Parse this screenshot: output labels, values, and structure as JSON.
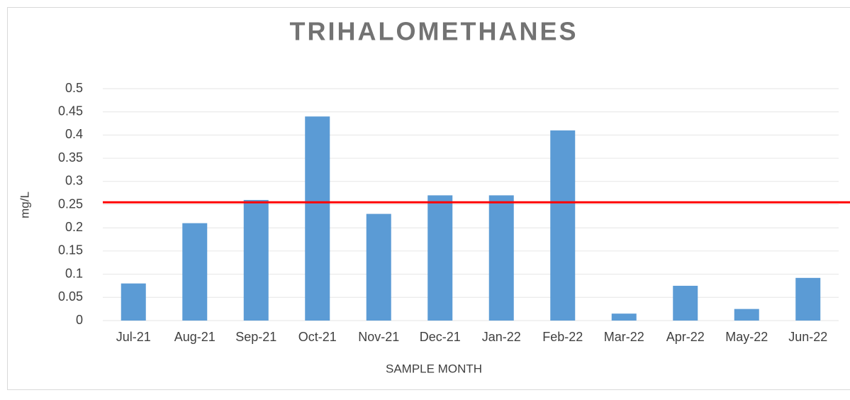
{
  "chart_data": {
    "type": "bar",
    "title": "TRIHALOMETHANES",
    "x_label": "SAMPLE MONTH",
    "y_label": "mg/L",
    "categories": [
      "Jul-21",
      "Aug-21",
      "Sep-21",
      "Oct-21",
      "Nov-21",
      "Dec-21",
      "Jan-22",
      "Feb-22",
      "Mar-22",
      "Apr-22",
      "May-22",
      "Jun-22"
    ],
    "values": [
      0.08,
      0.21,
      0.26,
      0.44,
      0.23,
      0.27,
      0.27,
      0.41,
      0.015,
      0.075,
      0.025,
      0.092
    ],
    "color": "#5b9bd5",
    "threshold": 0.255,
    "threshold_color": "#ff0000",
    "ylim": [
      0,
      0.5
    ],
    "yticks": [
      0,
      0.05,
      0.1,
      0.15,
      0.2,
      0.25,
      0.3,
      0.35,
      0.4,
      0.45,
      0.5
    ],
    "grid": true
  }
}
